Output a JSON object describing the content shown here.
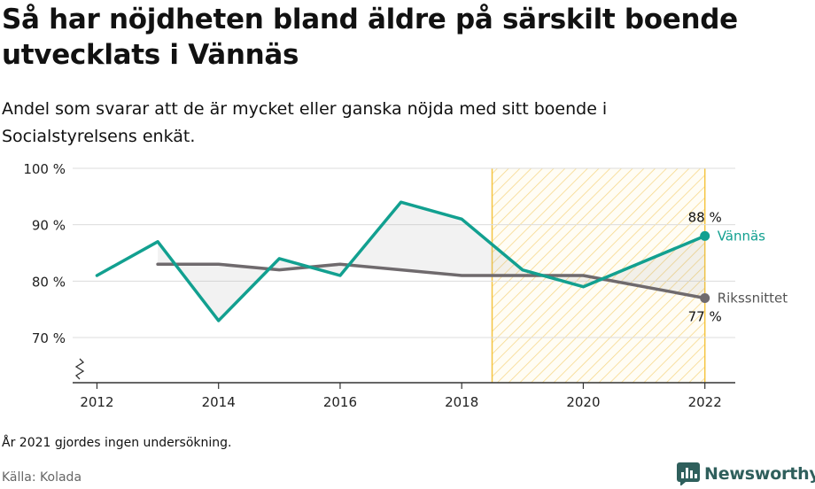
{
  "title": "Så har nöjdheten bland äldre på särskilt boende utvecklats i Vännäs",
  "subtitle": "Andel som svarar att de är mycket eller ganska nöjda med sitt boende i Socialstyrelsens enkät.",
  "note": "År 2021 gjordes ingen undersökning.",
  "source": "Källa: Kolada",
  "brand": {
    "name": "Newsworthy",
    "icon": "newsworthy-logo-icon",
    "color": "#2f5f5c"
  },
  "chart_data": {
    "type": "line",
    "x": [
      2012,
      2013,
      2014,
      2015,
      2016,
      2017,
      2018,
      2019,
      2020,
      2022
    ],
    "series": [
      {
        "name": "Vännäs",
        "values": [
          81,
          87,
          73,
          84,
          81,
          94,
          91,
          82,
          79,
          88
        ],
        "color": "#12a090",
        "end_label": "88 %"
      },
      {
        "name": "Rikssnittet",
        "values": [
          null,
          83,
          83,
          82,
          83,
          82,
          81,
          81,
          81,
          77
        ],
        "color": "#6f6a6d",
        "end_label": "77 %"
      }
    ],
    "x_ticks": [
      "2012",
      "2014",
      "2016",
      "2018",
      "2020",
      "2022"
    ],
    "y_ticks": [
      "70 %",
      "80 %",
      "90 %",
      "100 %"
    ],
    "ylim": [
      62,
      100
    ],
    "xlim": [
      2011.6,
      2022.5
    ],
    "highlight_range": [
      2018.5,
      2022
    ],
    "highlight_color": "#f5c542",
    "axis_break": true,
    "grid": true
  }
}
